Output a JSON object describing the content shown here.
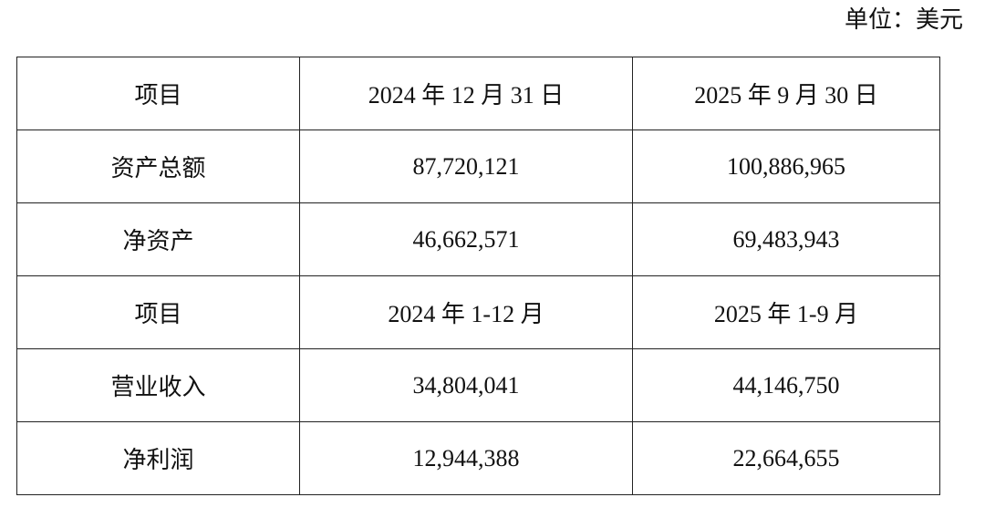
{
  "unit": "单位：美元",
  "table": {
    "rows": [
      [
        "项目",
        "2024 年 12 月 31 日",
        "2025 年 9 月 30 日"
      ],
      [
        "资产总额",
        "87,720,121",
        "100,886,965"
      ],
      [
        "净资产",
        "46,662,571",
        "69,483,943"
      ],
      [
        "项目",
        "2024 年 1-12 月",
        "2025 年 1-9 月"
      ],
      [
        "营业收入",
        "34,804,041",
        "44,146,750"
      ],
      [
        "净利润",
        "12,944,388",
        "22,664,655"
      ]
    ]
  }
}
